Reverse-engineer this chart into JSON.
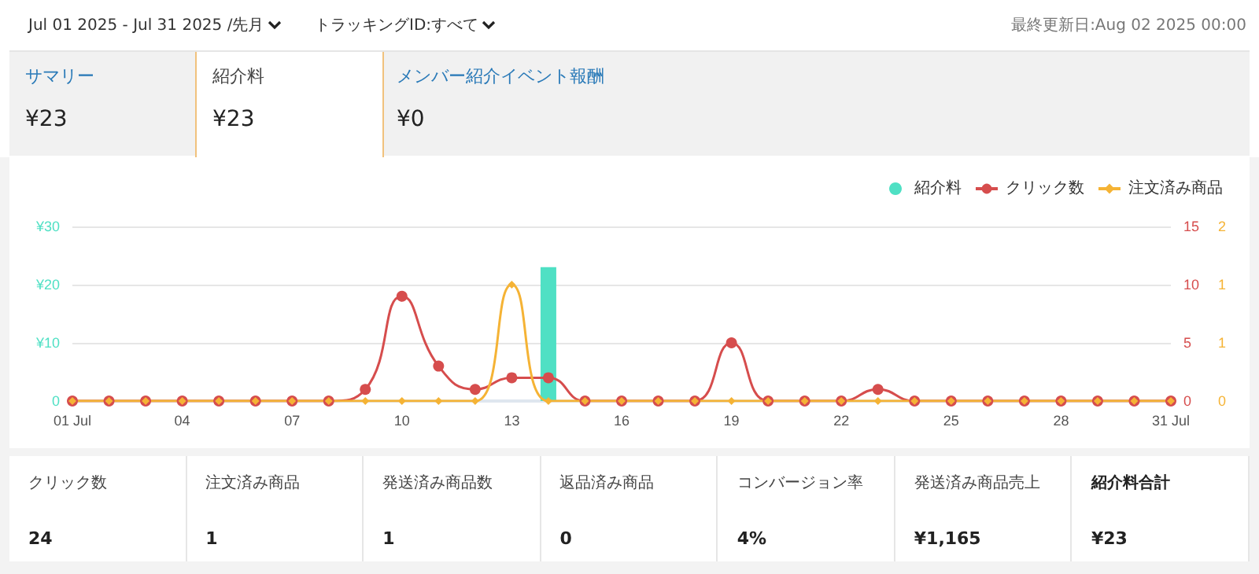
{
  "chart_data": [
    {
      "type": "other",
      "annotations": [
        "Jul 01 2025 - Jul 31 2025 /先月",
        "トラッキングID:すべて",
        "最終更新日:Aug 02 2025 00:00",
        "サマリー",
        "¥23",
        "紹介料",
        "¥23",
        "メンバー紹介イベント報酬",
        "¥0"
      ]
    },
    {
      "type": "bar",
      "categories": [
        "01 Jul",
        null,
        null,
        "04",
        null,
        null,
        "07",
        null,
        null,
        "10",
        null,
        null,
        "13",
        null,
        null,
        "16",
        null,
        null,
        "19",
        null,
        null,
        "22",
        null,
        null,
        "25",
        null,
        null,
        "28",
        null,
        null,
        "31 Jul"
      ],
      "series": [
        {
          "name": "紹介料",
          "type": "bar",
          "color": "#4fe0c4",
          "values": [
            0,
            0,
            0,
            0,
            0,
            0,
            0,
            0,
            0,
            0,
            0,
            0,
            0,
            23,
            0,
            0,
            0,
            0,
            0,
            0,
            0,
            0,
            0,
            0,
            0,
            0,
            0,
            0,
            0,
            0,
            0
          ]
        },
        {
          "name": "クリック数",
          "type": "line",
          "axis": "y2",
          "color": "#d64d4d",
          "marker": "circle",
          "values": [
            0,
            0,
            0,
            0,
            0,
            0,
            0,
            0,
            1,
            9,
            3,
            1,
            2,
            2,
            0,
            0,
            0,
            0,
            5,
            0,
            0,
            0,
            1,
            0,
            0,
            0,
            0,
            0,
            0,
            0,
            0
          ]
        },
        {
          "name": "注文済み商品",
          "type": "line",
          "axis": "y3",
          "color": "#f5b335",
          "marker": "diamond",
          "values": [
            0,
            0,
            0,
            0,
            0,
            0,
            0,
            0,
            0,
            0,
            0,
            0,
            1,
            0,
            0,
            0,
            0,
            0,
            0,
            0,
            0,
            0,
            0,
            0,
            0,
            0,
            0,
            0,
            0,
            0,
            0
          ]
        }
      ],
      "ylim": [
        0,
        30
      ],
      "yticks": [
        0,
        {
          "value": 10,
          "label": "¥10"
        },
        {
          "value": 20,
          "label": "¥20"
        },
        {
          "value": 30,
          "label": "¥30"
        }
      ],
      "y2lim": [
        0,
        15
      ],
      "y2ticks": [
        0,
        5,
        10,
        15
      ],
      "y3lim": [
        0,
        1.5
      ],
      "y3ticks": [
        0,
        {
          "value": 0.5,
          "label": "1"
        },
        1,
        {
          "value": 1.5,
          "label": "2"
        }
      ],
      "grid": "y",
      "legend": "top right"
    },
    {
      "type": "other",
      "annotations": [
        "クリック数",
        "24",
        "注文済み商品",
        "1",
        "発送済み商品数",
        "1",
        "返品済み商品",
        "0",
        "コンバージョン率",
        "4%",
        "発送済み商品売上",
        "¥1,165",
        "紹介料合計",
        "¥23"
      ]
    }
  ]
}
